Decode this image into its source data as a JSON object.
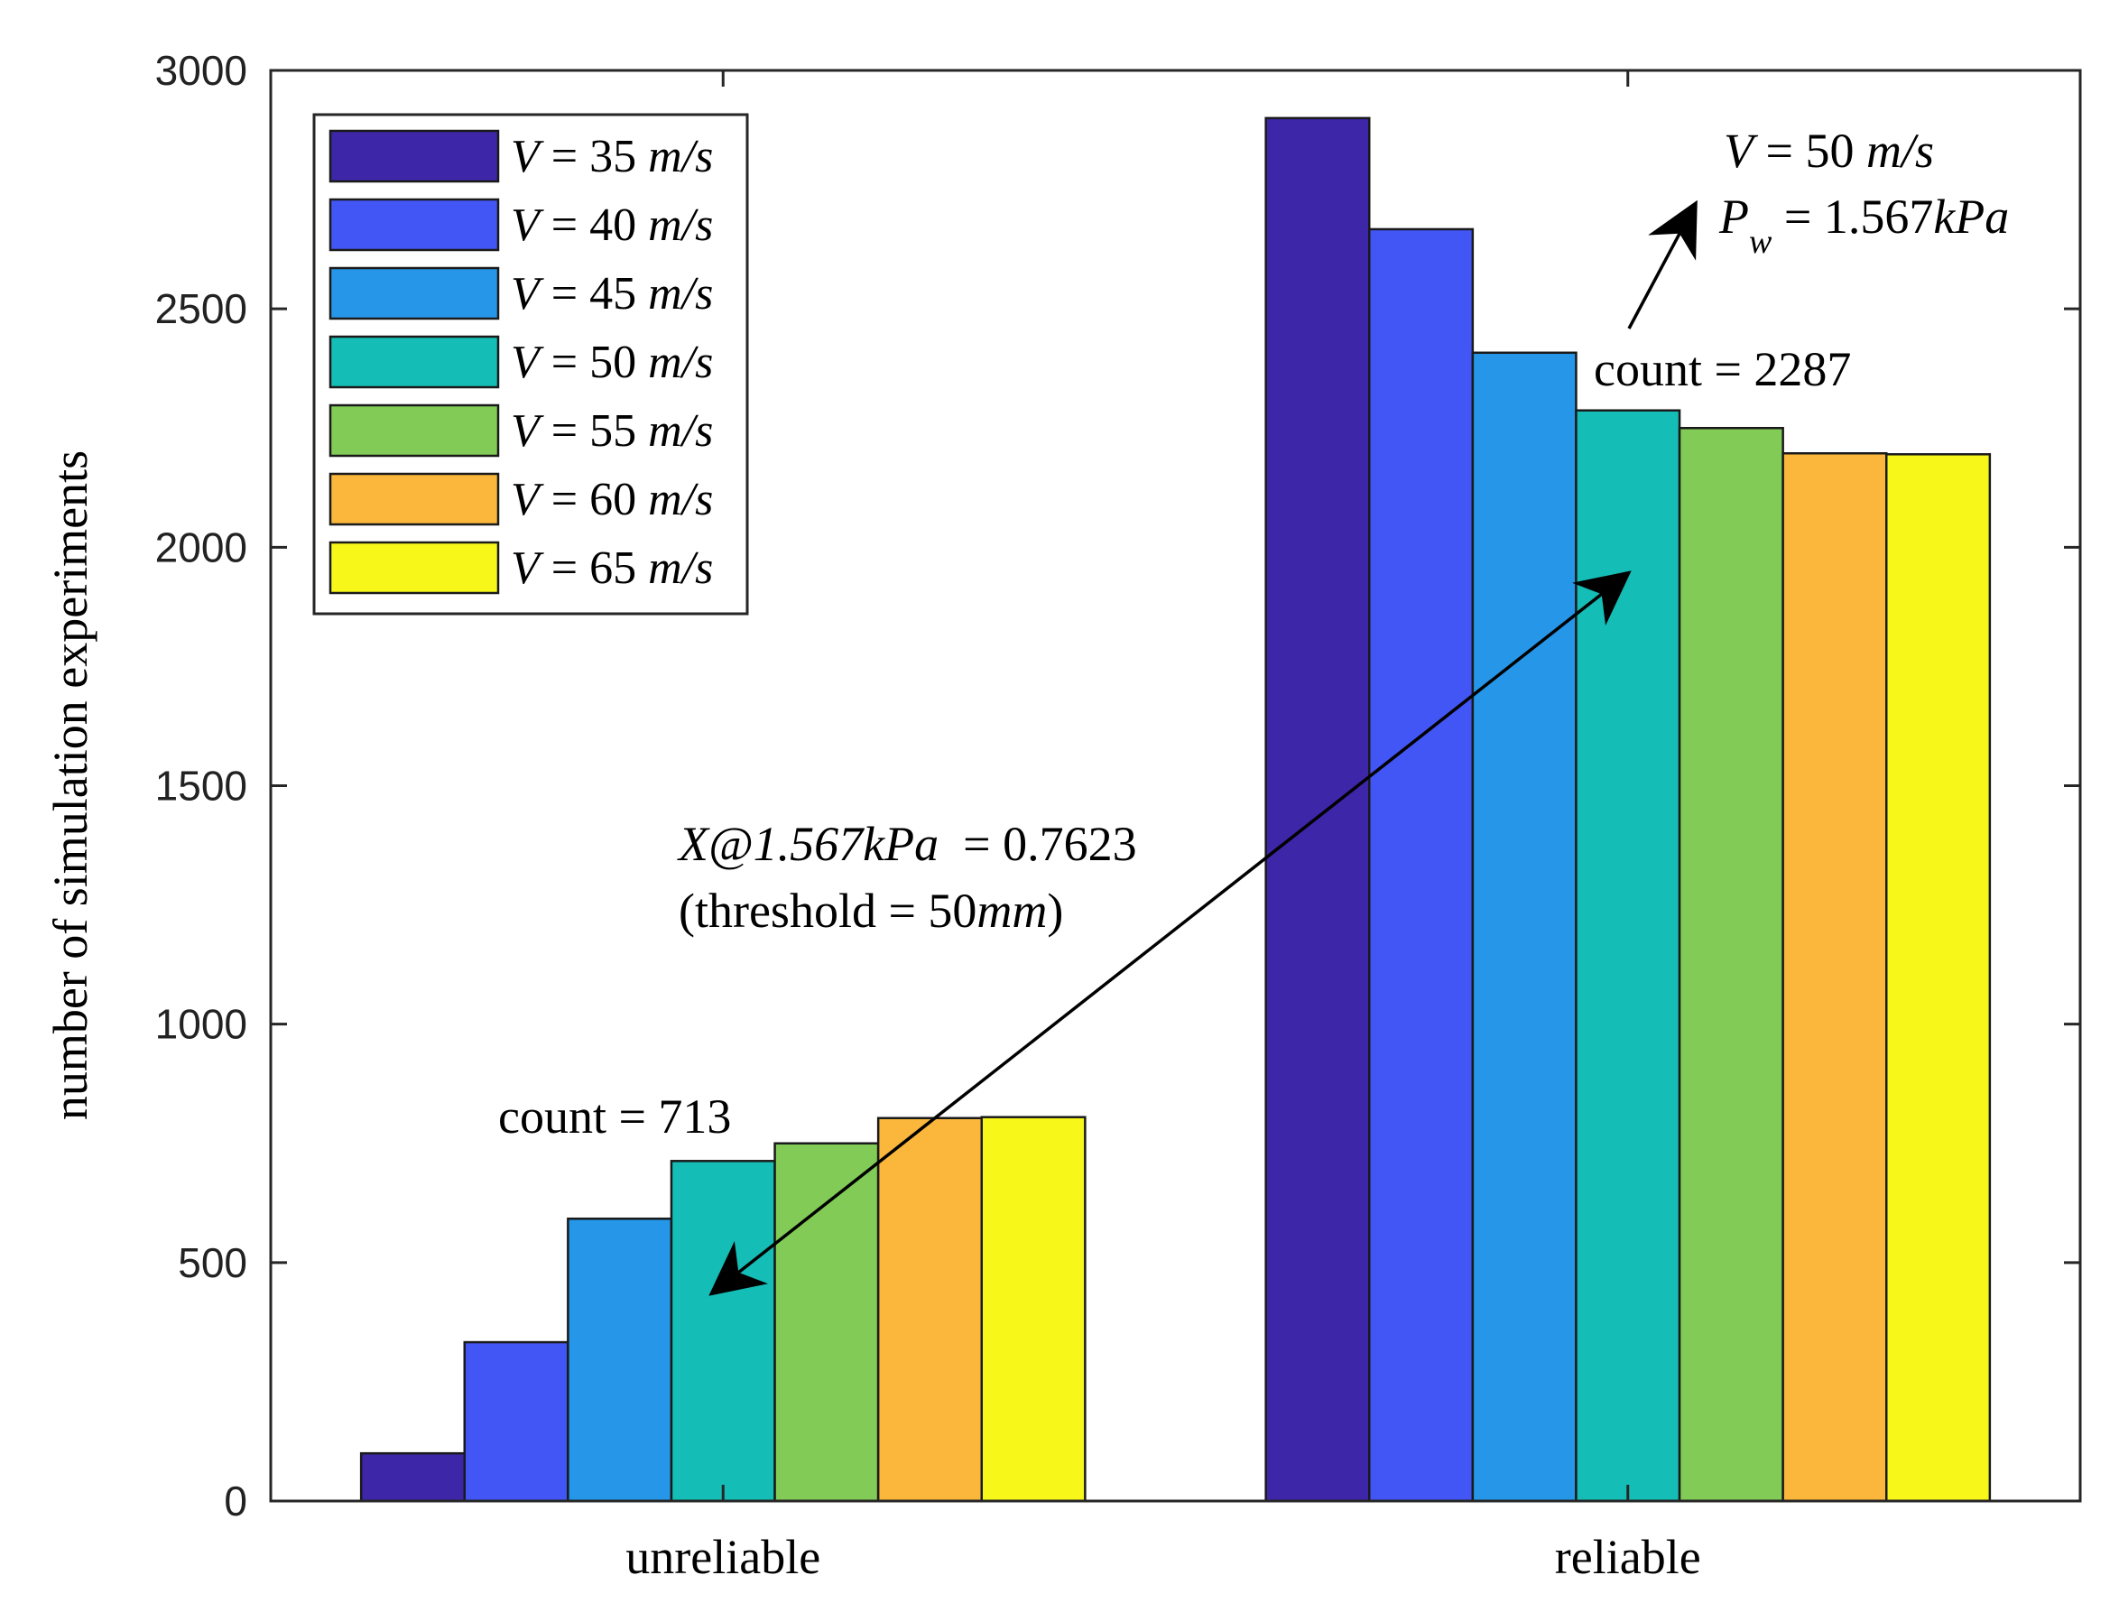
{
  "chart_data": {
    "type": "bar",
    "title": "",
    "xlabel": "",
    "ylabel": "number of simulation experiments",
    "ylim": [
      0,
      3000
    ],
    "yticks": [
      0,
      500,
      1000,
      1500,
      2000,
      2500,
      3000
    ],
    "categories": [
      "unreliable",
      "reliable"
    ],
    "legend_position": "top-left",
    "series": [
      {
        "name": "V = 35 m/s",
        "var": "V",
        "rest": " = 35 ",
        "unit": "m/s",
        "color": "#3d26a8",
        "values": [
          100,
          2900
        ]
      },
      {
        "name": "V = 40 m/s",
        "var": "V",
        "rest": " = 40 ",
        "unit": "m/s",
        "color": "#4256f5",
        "values": [
          333,
          2667
        ]
      },
      {
        "name": "V = 45 m/s",
        "var": "V",
        "rest": " = 45 ",
        "unit": "m/s",
        "color": "#2696e8",
        "values": [
          592,
          2408
        ]
      },
      {
        "name": "V = 50 m/s",
        "var": "V",
        "rest": " = 50 ",
        "unit": "m/s",
        "color": "#14bdb6",
        "values": [
          713,
          2287
        ]
      },
      {
        "name": "V = 55 m/s",
        "var": "V",
        "rest": " = 55 ",
        "unit": "m/s",
        "color": "#81cb56",
        "values": [
          750,
          2250
        ]
      },
      {
        "name": "V = 60 m/s",
        "var": "V",
        "rest": " = 60 ",
        "unit": "m/s",
        "color": "#fbb73b",
        "values": [
          803,
          2197
        ]
      },
      {
        "name": "V = 65 m/s",
        "var": "V",
        "rest": " = 65 ",
        "unit": "m/s",
        "color": "#f7f81a",
        "values": [
          805,
          2195
        ]
      }
    ],
    "annotations": {
      "count_unreliable": "count = 713",
      "count_reliable": "count = 2287",
      "ratio_var": "X@1.567kPa",
      "ratio_val": "  = 0.7623",
      "threshold_pre": "(threshold = 50",
      "threshold_unit": "mm",
      "threshold_post": ")",
      "cond_v_var": "V",
      "cond_v_rest": " = 50 ",
      "cond_v_unit": "m/s",
      "cond_p_var": "P",
      "cond_p_sub": "w",
      "cond_p_rest": " = 1.567",
      "cond_p_unit": "kPa"
    }
  }
}
